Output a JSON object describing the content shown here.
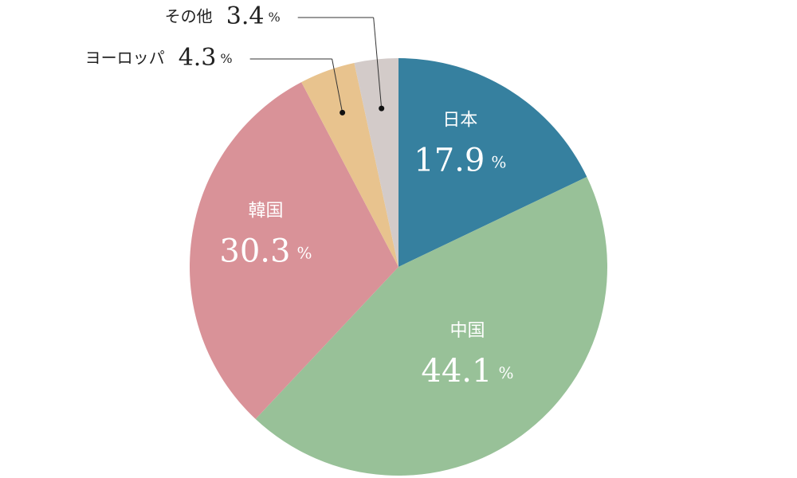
{
  "chart_data": {
    "type": "pie",
    "categories": [
      "日本",
      "中国",
      "韓国",
      "ヨーロッパ",
      "その他"
    ],
    "values": [
      17.9,
      44.1,
      30.3,
      4.3,
      3.4
    ],
    "unit": "%",
    "colors": [
      "#36809f",
      "#98c198",
      "#d99298",
      "#e8c38e",
      "#d3cbc9"
    ]
  }
}
